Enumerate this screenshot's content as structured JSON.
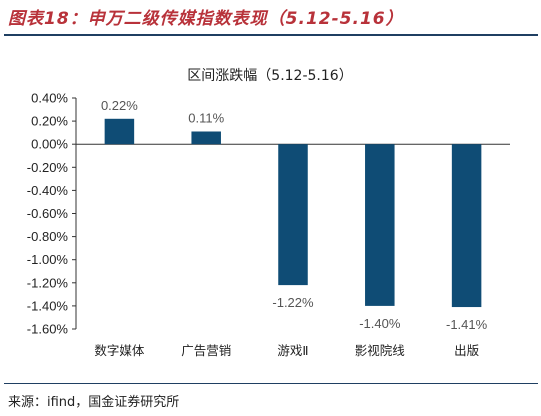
{
  "figure": {
    "title": "图表18：申万二级传媒指数表现（5.12-5.16）",
    "source": "来源：ifind，国金证券研究所"
  },
  "chart_data": {
    "type": "bar",
    "title": "区间涨跌幅（5.12-5.16）",
    "categories": [
      "数字媒体",
      "广告营销",
      "游戏Ⅱ",
      "影视院线",
      "出版"
    ],
    "values": [
      0.22,
      0.11,
      -1.22,
      -1.4,
      -1.41
    ],
    "data_labels": [
      "0.22%",
      "0.11%",
      "-1.22%",
      "-1.40%",
      "-1.41%"
    ],
    "ylim": [
      -1.6,
      0.4
    ],
    "yticks": [
      0.4,
      0.2,
      0.0,
      -0.2,
      -0.4,
      -0.6,
      -0.8,
      -1.0,
      -1.2,
      -1.4,
      -1.6
    ],
    "ytick_labels": [
      "0.40%",
      "0.20%",
      "0.00%",
      "-0.20%",
      "-0.40%",
      "-0.60%",
      "-0.80%",
      "-1.00%",
      "-1.20%",
      "-1.40%",
      "-1.60%"
    ],
    "xlabel": "",
    "ylabel": "",
    "grid": false,
    "legend": "none",
    "bar_color": "#0f4c75"
  }
}
